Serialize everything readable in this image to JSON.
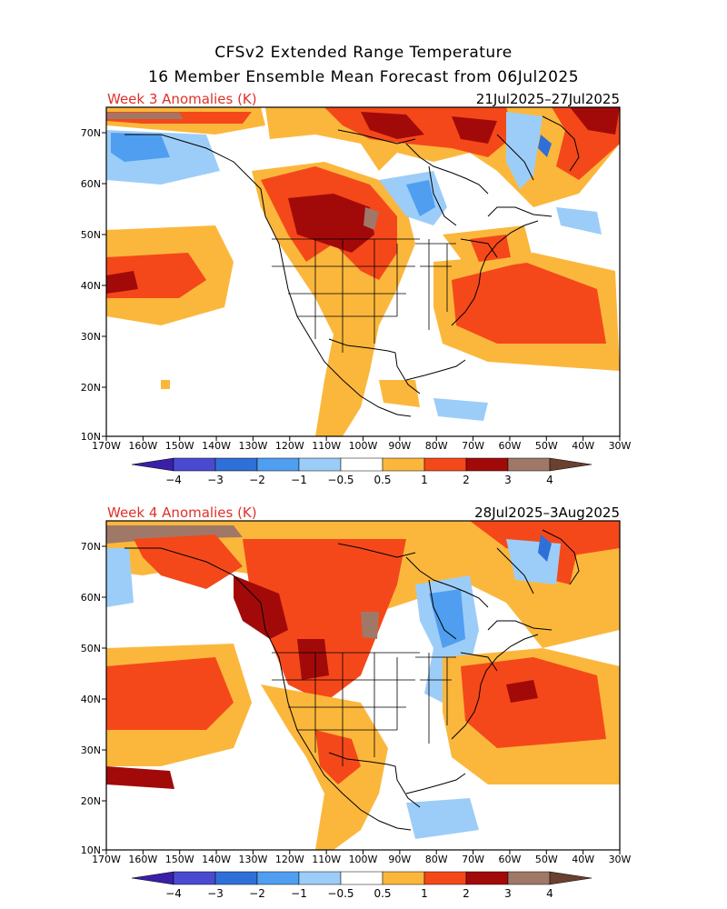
{
  "title": {
    "line1": "CFSv2 Extended Range Temperature",
    "line2": "16 Member Ensemble Mean Forecast from 06Jul2025"
  },
  "panels": [
    {
      "label": "Week 3 Anomalies (K)",
      "dates": "21Jul2025–27Jul2025"
    },
    {
      "label": "Week 4 Anomalies (K)",
      "dates": "28Jul2025–3Aug2025"
    }
  ],
  "axes": {
    "lon_labels": [
      "170W",
      "160W",
      "150W",
      "140W",
      "130W",
      "120W",
      "110W",
      "100W",
      "90W",
      "80W",
      "70W",
      "60W",
      "50W",
      "40W",
      "30W"
    ],
    "lat_labels": [
      "70N",
      "60N",
      "50N",
      "40N",
      "30N",
      "20N",
      "10N"
    ]
  },
  "colorbar": {
    "labels": [
      "−4",
      "−3",
      "−2",
      "−1",
      "−0.5",
      "0.5",
      "1",
      "2",
      "3",
      "4"
    ],
    "colors": [
      "#3a1fa8",
      "#4a4ad0",
      "#2f6fd8",
      "#4f9ef0",
      "#9ccdf8",
      "#ffffff",
      "#fbb73c",
      "#f4481a",
      "#a20a0a",
      "#a07868",
      "#6a4030"
    ]
  },
  "colors": {
    "pos_light": "#fbb73c",
    "pos_mid": "#f4481a",
    "pos_strong": "#a20a0a",
    "pos_extreme": "#a07868",
    "neg_light": "#9ccdf8",
    "neg_mid": "#4f9ef0",
    "neg_strong": "#2f6fd8"
  }
}
